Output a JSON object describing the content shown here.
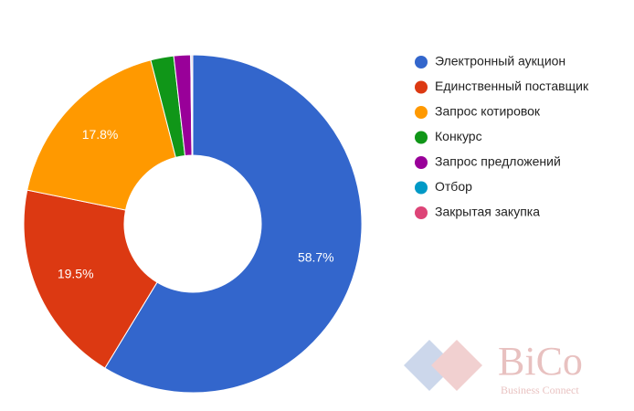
{
  "chart_data": {
    "type": "donut",
    "categories": [
      "Электронный аукцион",
      "Единственный поставщик",
      "Запрос котировок",
      "Конкурс",
      "Запрос предложений",
      "Отбор",
      "Закрытая закупка"
    ],
    "values": [
      58.7,
      19.5,
      17.8,
      2.2,
      1.6,
      0.1,
      0.1
    ],
    "value_labels": [
      "58.7%",
      "19.5%",
      "17.8%",
      null,
      null,
      null,
      null
    ],
    "colors": [
      "#3366cc",
      "#dc3912",
      "#ff9900",
      "#109618",
      "#990099",
      "#0099c6",
      "#dd4477"
    ],
    "legend": "right",
    "watermark": {
      "title": "BiCo",
      "subtitle": "Business Connect"
    }
  }
}
